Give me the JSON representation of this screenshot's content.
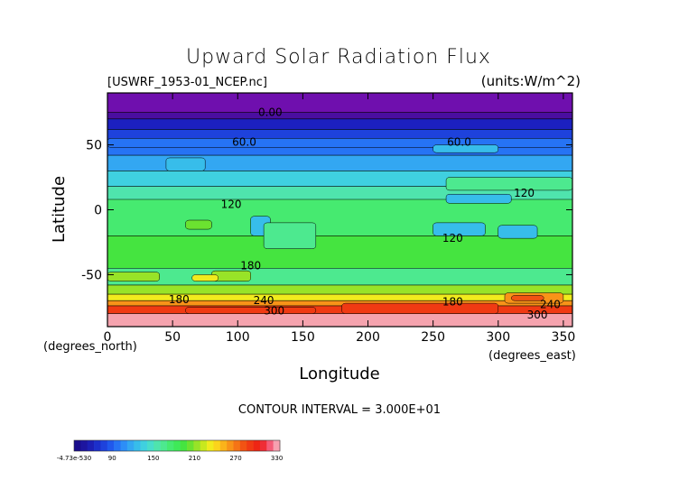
{
  "chart_data": {
    "type": "heatmap",
    "title": "Upward Solar Radiation Flux",
    "subtitle_left": "[USWRF_1953-01_NCEP.nc]",
    "subtitle_right": "(units:W/m^2)",
    "xlabel": "Longitude",
    "ylabel": "Latitude",
    "x_unit_label": "(degrees_east)",
    "y_unit_label": "(degrees_north)",
    "xlim": [
      0,
      357
    ],
    "ylim": [
      -90,
      90
    ],
    "x_ticks": [
      0,
      50,
      100,
      150,
      200,
      250,
      300,
      350
    ],
    "x_tick_labels": [
      "0",
      "50",
      "100",
      "150",
      "200",
      "250",
      "300",
      "350"
    ],
    "y_ticks": [
      50,
      0,
      -50
    ],
    "y_tick_labels": [
      "50",
      "0",
      "-50"
    ],
    "contour_interval_text": "CONTOUR INTERVAL = 3.000E+01",
    "contour_labels": [
      {
        "text": "0.00",
        "x": 125,
        "y": 75
      },
      {
        "text": "60.0",
        "x": 105,
        "y": 52
      },
      {
        "text": "60.0",
        "x": 270,
        "y": 52
      },
      {
        "text": "120",
        "x": 320,
        "y": 13
      },
      {
        "text": "120",
        "x": 95,
        "y": 4
      },
      {
        "text": "120",
        "x": 265,
        "y": -22
      },
      {
        "text": "180",
        "x": 110,
        "y": -43
      },
      {
        "text": "180",
        "x": 55,
        "y": -69
      },
      {
        "text": "240",
        "x": 120,
        "y": -70
      },
      {
        "text": "300",
        "x": 128,
        "y": -78
      },
      {
        "text": "180",
        "x": 265,
        "y": -71
      },
      {
        "text": "240",
        "x": 340,
        "y": -73
      },
      {
        "text": "300",
        "x": 330,
        "y": -81
      }
    ],
    "colorbar": {
      "tick_labels": [
        "-4.73e-530",
        "90",
        "150",
        "210",
        "270",
        "330"
      ],
      "colors": [
        "#1a0d8c",
        "#1d159f",
        "#1c1fb5",
        "#1c2fcb",
        "#1e42dc",
        "#2058ec",
        "#2673f4",
        "#2d8ef7",
        "#33a7f2",
        "#37bdea",
        "#3fd0e0",
        "#48ddcb",
        "#4fe4ad",
        "#4de98f",
        "#46ea70",
        "#3fe958",
        "#45e440",
        "#6be230",
        "#98e328",
        "#c8e81e",
        "#f1eb1d",
        "#fbd41c",
        "#fbb31a",
        "#f89318",
        "#f57416",
        "#f25313",
        "#f03a13",
        "#ee2614",
        "#ef2d36",
        "#f45c78",
        "#f7a0b0"
      ]
    },
    "latitude_profile": [
      {
        "lat_top": 90,
        "lat_bottom": 75,
        "color": "#6f0fae",
        "value": 0
      },
      {
        "lat_top": 75,
        "lat_bottom": 70,
        "color": "#4a0ea0",
        "value": 15
      },
      {
        "lat_top": 70,
        "lat_bottom": 62,
        "color": "#1c20c0",
        "value": 40
      },
      {
        "lat_top": 62,
        "lat_bottom": 52,
        "color": "#1e42dc",
        "value": 60
      },
      {
        "lat_top": 52,
        "lat_bottom": 42,
        "color": "#2673f4",
        "value": 80
      },
      {
        "lat_top": 42,
        "lat_bottom": 30,
        "color": "#33a7f2",
        "value": 100
      },
      {
        "lat_top": 30,
        "lat_bottom": 18,
        "color": "#3fd0e0",
        "value": 115
      },
      {
        "lat_top": 18,
        "lat_bottom": 8,
        "color": "#4fe4ad",
        "value": 125
      },
      {
        "lat_top": 8,
        "lat_bottom": -20,
        "color": "#46ea70",
        "value": 140
      },
      {
        "lat_top": -20,
        "lat_bottom": -45,
        "color": "#45e440",
        "value": 155
      },
      {
        "lat_top": -45,
        "lat_bottom": -58,
        "color": "#4de98f",
        "value": 150
      },
      {
        "lat_top": -58,
        "lat_bottom": -65,
        "color": "#98e328",
        "value": 190
      },
      {
        "lat_top": -65,
        "lat_bottom": -70,
        "color": "#f1eb1d",
        "value": 220
      },
      {
        "lat_top": -70,
        "lat_bottom": -74,
        "color": "#f89318",
        "value": 260
      },
      {
        "lat_top": -74,
        "lat_bottom": -80,
        "color": "#f03a13",
        "value": 300
      },
      {
        "lat_top": -80,
        "lat_bottom": -90,
        "color": "#f5a3ae",
        "value": 330
      }
    ],
    "regions": [
      {
        "color": "#2673f4",
        "lon0": 0,
        "lon1": 357,
        "lat0": 48,
        "lat1": 55
      },
      {
        "color": "#37bdea",
        "lon0": 45,
        "lon1": 75,
        "lat0": 30,
        "lat1": 40
      },
      {
        "color": "#37bdea",
        "lon0": 250,
        "lon1": 300,
        "lat0": 44,
        "lat1": 50
      },
      {
        "color": "#4de98f",
        "lon0": 260,
        "lon1": 357,
        "lat0": 15,
        "lat1": 25
      },
      {
        "color": "#37bdea",
        "lon0": 260,
        "lon1": 310,
        "lat0": 5,
        "lat1": 12
      },
      {
        "color": "#37bdea",
        "lon0": 250,
        "lon1": 290,
        "lat0": -20,
        "lat1": -10
      },
      {
        "color": "#37bdea",
        "lon0": 110,
        "lon1": 125,
        "lat0": -20,
        "lat1": -5
      },
      {
        "color": "#37bdea",
        "lon0": 300,
        "lon1": 330,
        "lat0": -22,
        "lat1": -12
      },
      {
        "color": "#4de98f",
        "lon0": 120,
        "lon1": 160,
        "lat0": -30,
        "lat1": -10
      },
      {
        "color": "#6be230",
        "lon0": 60,
        "lon1": 80,
        "lat0": -15,
        "lat1": -8
      },
      {
        "color": "#98e328",
        "lon0": 80,
        "lon1": 110,
        "lat0": -55,
        "lat1": -47
      },
      {
        "color": "#98e328",
        "lon0": 0,
        "lon1": 40,
        "lat0": -55,
        "lat1": -48
      },
      {
        "color": "#f1eb1d",
        "lon0": 65,
        "lon1": 85,
        "lat0": -55,
        "lat1": -50
      },
      {
        "color": "#f89318",
        "lon0": 305,
        "lon1": 350,
        "lat0": -72,
        "lat1": -64
      },
      {
        "color": "#f25313",
        "lon0": 310,
        "lon1": 335,
        "lat0": -70,
        "lat1": -66
      },
      {
        "color": "#f03a13",
        "lon0": 180,
        "lon1": 300,
        "lat0": -80,
        "lat1": -72
      },
      {
        "color": "#f03a13",
        "lon0": 60,
        "lon1": 160,
        "lat0": -80,
        "lat1": -75
      }
    ]
  }
}
